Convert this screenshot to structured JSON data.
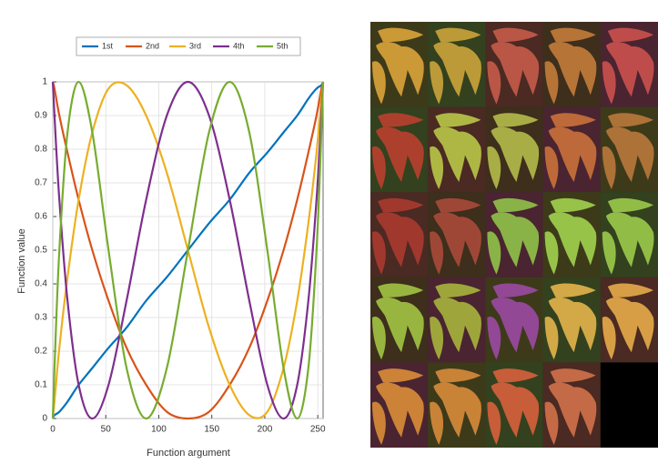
{
  "chart_data": {
    "type": "line",
    "xlabel": "Function argument",
    "ylabel": "Function value",
    "x": [
      0,
      1.6,
      6.2,
      13.9,
      24.4,
      37.3,
      52.6,
      69.6,
      88.1,
      107.6,
      127.5,
      147.4,
      166.9,
      185.4,
      202.4,
      217.7,
      230.6,
      241.1,
      248.8,
      253.4,
      255
    ],
    "series": [
      {
        "name": "1st",
        "color": "#0072bd",
        "values": [
          0,
          0.01,
          0.02,
          0.05,
          0.1,
          0.15,
          0.21,
          0.27,
          0.35,
          0.42,
          0.5,
          0.58,
          0.65,
          0.73,
          0.79,
          0.85,
          0.9,
          0.95,
          0.98,
          0.99,
          1
        ]
      },
      {
        "name": "2nd",
        "color": "#d95319",
        "values": [
          1,
          0.98,
          0.9,
          0.79,
          0.65,
          0.5,
          0.35,
          0.21,
          0.1,
          0.02,
          0,
          0.02,
          0.1,
          0.21,
          0.35,
          0.5,
          0.65,
          0.79,
          0.9,
          0.98,
          1
        ]
      },
      {
        "name": "3rd",
        "color": "#edb120",
        "values": [
          0,
          0.05,
          0.21,
          0.42,
          0.65,
          0.85,
          0.98,
          0.99,
          0.9,
          0.73,
          0.5,
          0.27,
          0.1,
          0.01,
          0.02,
          0.15,
          0.35,
          0.58,
          0.79,
          0.95,
          1
        ]
      },
      {
        "name": "4th",
        "color": "#7e2f8e",
        "values": [
          1,
          0.9,
          0.65,
          0.35,
          0.1,
          0,
          0.1,
          0.35,
          0.65,
          0.9,
          1,
          0.9,
          0.65,
          0.35,
          0.1,
          0,
          0.1,
          0.35,
          0.65,
          0.9,
          1
        ]
      },
      {
        "name": "5th",
        "color": "#77ac30",
        "values": [
          0,
          0.15,
          0.5,
          0.85,
          1,
          0.85,
          0.5,
          0.15,
          0,
          0.15,
          0.5,
          0.85,
          1,
          0.85,
          0.5,
          0.15,
          0,
          0.15,
          0.5,
          0.85,
          1
        ]
      }
    ],
    "xlim": [
      0,
      255
    ],
    "xticks": [
      0,
      50,
      100,
      150,
      200,
      250
    ],
    "ylim": [
      0,
      1
    ],
    "yticks": [
      0,
      0.1,
      0.2,
      0.3,
      0.4,
      0.5,
      0.6,
      0.7,
      0.8,
      0.9,
      1
    ],
    "grid": true,
    "legend_position": "top"
  }
}
